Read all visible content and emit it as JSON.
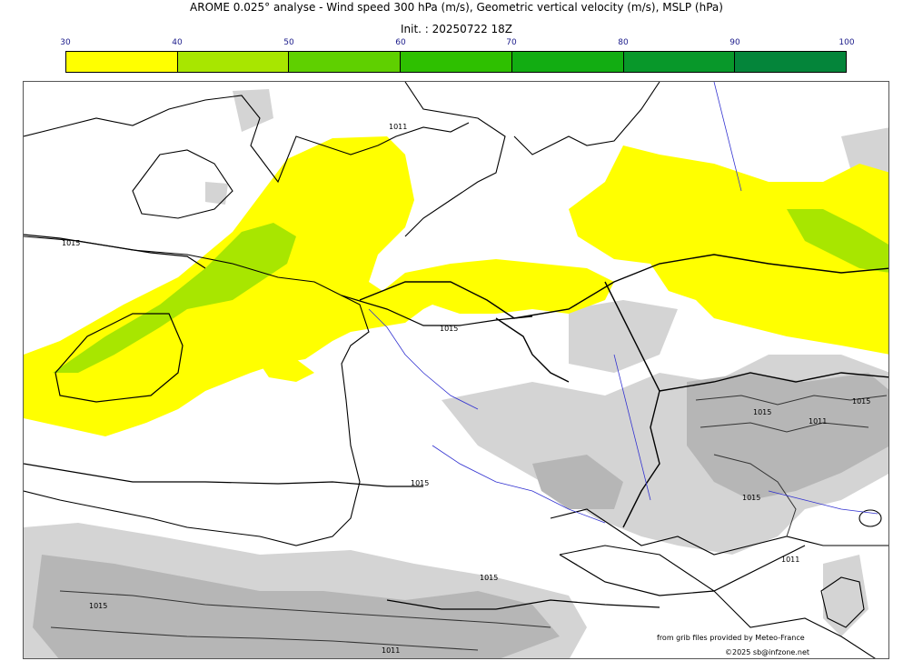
{
  "header": {
    "title": "AROME 0.025° analyse - Wind speed 300 hPa (m/s), Geometric vertical velocity (m/s), MSLP (hPa)",
    "init": "Init. : 20250722 18Z"
  },
  "colorbar": {
    "ticks": [
      "30",
      "40",
      "50",
      "60",
      "70",
      "80",
      "90",
      "100"
    ],
    "colors": [
      "#ffff00",
      "#a8e600",
      "#5fd000",
      "#2ec000",
      "#12ad12",
      "#08982a",
      "#04853a",
      "#057447"
    ]
  },
  "isobars": {
    "labels": [
      "1011",
      "1015",
      "1015",
      "1015",
      "1015",
      "1015",
      "1011",
      "1015",
      "1011",
      "1015",
      "1015",
      "1011"
    ]
  },
  "credits": {
    "source": "from grib files provided by Meteo-France",
    "copyright": "©2025 sb@infzone.net"
  }
}
